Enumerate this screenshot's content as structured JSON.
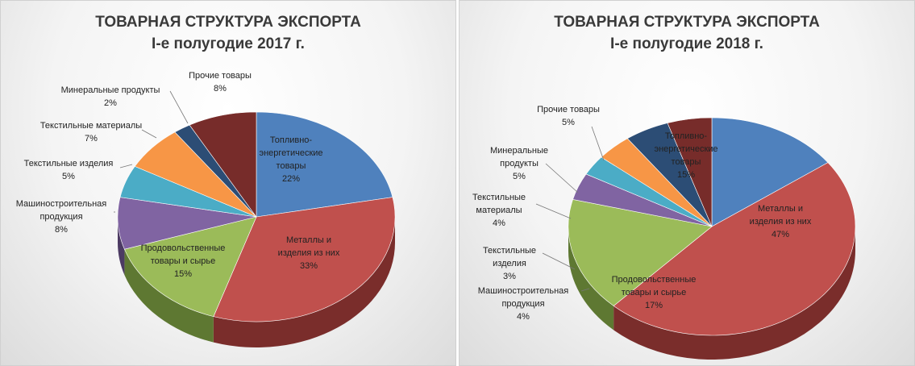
{
  "chart_data": [
    {
      "type": "pie",
      "title": "ТОВАРНАЯ СТРУКТУРА ЭКСПОРТА",
      "subtitle": "I-е полугодие 2017 г.",
      "slices": [
        {
          "label": "Топливно-энергетические товары",
          "label_lines": [
            "Топливно-",
            "энергетические",
            "товары"
          ],
          "value": 22,
          "value_text": "22%",
          "color": "#4F81BD",
          "side": "#2F4F7A",
          "label_pos": "inside"
        },
        {
          "label": "Металлы и изделия из них",
          "label_lines": [
            "Металлы и",
            "изделия из них"
          ],
          "value": 33,
          "value_text": "33%",
          "color": "#C0504D",
          "side": "#7A2D2B",
          "label_pos": "inside"
        },
        {
          "label": "Продовольственные товары и сырье",
          "label_lines": [
            "Продовольственные",
            "товары и сырье"
          ],
          "value": 15,
          "value_text": "15%",
          "color": "#9BBB59",
          "side": "#5E7832",
          "label_pos": "inside"
        },
        {
          "label": "Машиностроительная продукция",
          "label_lines": [
            "Машиностроительная",
            "продукция"
          ],
          "value": 8,
          "value_text": "8%",
          "color": "#8064A2",
          "side": "#4C3A63",
          "label_pos": "outside"
        },
        {
          "label": "Текстильные изделия",
          "label_lines": [
            "Текстильные изделия"
          ],
          "value": 5,
          "value_text": "5%",
          "color": "#4BACC6",
          "side": "#2B6C7E",
          "label_pos": "outside"
        },
        {
          "label": "Текстильные материалы",
          "label_lines": [
            "Текстильные материалы"
          ],
          "value": 7,
          "value_text": "7%",
          "color": "#F79646",
          "side": "#A85E22",
          "label_pos": "outside"
        },
        {
          "label": "Минеральные продукты",
          "label_lines": [
            "Минеральные продукты"
          ],
          "value": 2,
          "value_text": "2%",
          "color": "#2C4D75",
          "side": "#1A2F48",
          "label_pos": "outside"
        },
        {
          "label": "Прочие товары",
          "label_lines": [
            "Прочие товары"
          ],
          "value": 8,
          "value_text": "8%",
          "color": "#772C2A",
          "side": "#4A1A19",
          "label_pos": "outside"
        }
      ]
    },
    {
      "type": "pie",
      "title": "ТОВАРНАЯ СТРУКТУРА ЭКСПОРТА",
      "subtitle": "I-е полугодие 2018 г.",
      "slices": [
        {
          "label": "Топливно-энергетические товары",
          "label_lines": [
            "Топливно-",
            "энергетические",
            "товары"
          ],
          "value": 15,
          "value_text": "15%",
          "color": "#4F81BD",
          "side": "#2F4F7A",
          "label_pos": "inside"
        },
        {
          "label": "Металлы и изделия из них",
          "label_lines": [
            "Металлы и",
            "изделия из них"
          ],
          "value": 47,
          "value_text": "47%",
          "color": "#C0504D",
          "side": "#7A2D2B",
          "label_pos": "inside"
        },
        {
          "label": "Продовольственные товары и сырье",
          "label_lines": [
            "Продовольственные",
            "товары и сырье"
          ],
          "value": 17,
          "value_text": "17%",
          "color": "#9BBB59",
          "side": "#5E7832",
          "label_pos": "inside"
        },
        {
          "label": "Машиностроительная продукция",
          "label_lines": [
            "Машиностроительная",
            "продукция"
          ],
          "value": 4,
          "value_text": "4%",
          "color": "#8064A2",
          "side": "#4C3A63",
          "label_pos": "outside"
        },
        {
          "label": "Текстильные изделия",
          "label_lines": [
            "Текстильные",
            "изделия"
          ],
          "value": 3,
          "value_text": "3%",
          "color": "#4BACC6",
          "side": "#2B6C7E",
          "label_pos": "outside"
        },
        {
          "label": "Текстильные материалы",
          "label_lines": [
            "Текстильные",
            "материалы"
          ],
          "value": 4,
          "value_text": "4%",
          "color": "#F79646",
          "side": "#A85E22",
          "label_pos": "outside"
        },
        {
          "label": "Минеральные продукты",
          "label_lines": [
            "Минеральные",
            "продукты"
          ],
          "value": 5,
          "value_text": "5%",
          "color": "#2C4D75",
          "side": "#1A2F48",
          "label_pos": "outside"
        },
        {
          "label": "Прочие товары",
          "label_lines": [
            "Прочие товары"
          ],
          "value": 5,
          "value_text": "5%",
          "color": "#772C2A",
          "side": "#4A1A19",
          "label_pos": "outside"
        }
      ]
    }
  ]
}
